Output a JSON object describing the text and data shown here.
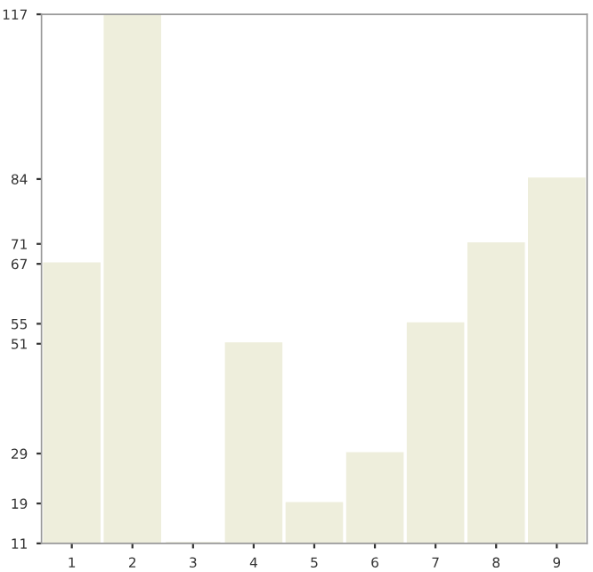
{
  "chart_data": {
    "type": "bar",
    "categories": [
      "1",
      "2",
      "3",
      "4",
      "5",
      "6",
      "7",
      "8",
      "9"
    ],
    "values": [
      67,
      117,
      11,
      51,
      19,
      29,
      55,
      71,
      84
    ],
    "color": "#eeeedc",
    "ylim": [
      11,
      117
    ],
    "yticks": [
      11,
      19,
      29,
      51,
      55,
      67,
      71,
      84,
      117
    ],
    "grid": false
  }
}
